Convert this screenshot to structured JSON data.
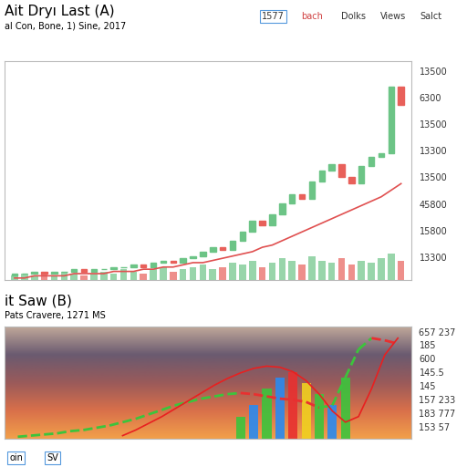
{
  "header": {
    "toolbar": [
      "1577",
      "bach",
      "Dolks",
      "Views",
      "Salct"
    ]
  },
  "footer": {
    "texts": [
      "oin",
      "SV"
    ]
  },
  "chart_data": [
    {
      "type": "candlestick",
      "title": "Ait Dryı Last (A)",
      "subtitle": "al Con, Bone, 1) Sine, 2017",
      "xlim": [
        -1,
        40
      ],
      "ylim": [
        0,
        100
      ],
      "tick_labels": false,
      "annotations": [
        "13500",
        "6300",
        "13500",
        "13300",
        "13500",
        "45800",
        "15800",
        "13300"
      ],
      "series": [
        {
          "type": "candlestick",
          "colors": [
            "#6cc486",
            "#e8605a"
          ],
          "open": [
            2,
            3,
            3,
            4,
            3,
            4,
            4,
            5,
            4,
            5,
            5,
            6,
            6,
            7,
            6,
            8,
            9,
            8,
            10,
            11,
            13,
            15,
            14,
            18,
            22,
            27,
            25,
            30,
            35,
            39,
            37,
            45,
            50,
            53,
            47,
            44,
            52,
            56,
            58,
            88
          ],
          "close": [
            3,
            3,
            4,
            3,
            4,
            4,
            5,
            4,
            5,
            5,
            6,
            6,
            7,
            6,
            8,
            9,
            8,
            10,
            11,
            13,
            15,
            14,
            18,
            22,
            27,
            25,
            30,
            35,
            39,
            37,
            45,
            50,
            53,
            47,
            44,
            52,
            56,
            58,
            88,
            80
          ]
        },
        {
          "type": "line",
          "color": "#e05050",
          "values": [
            1,
            1,
            2,
            2,
            2,
            2,
            3,
            3,
            3,
            3,
            4,
            4,
            4,
            5,
            5,
            6,
            6,
            7,
            8,
            8,
            9,
            10,
            11,
            12,
            13,
            15,
            16,
            18,
            20,
            22,
            24,
            26,
            28,
            30,
            32,
            34,
            36,
            38,
            41,
            44
          ]
        },
        {
          "type": "bar",
          "values": [
            2,
            3,
            2,
            3,
            2,
            4,
            3,
            2,
            3,
            4,
            3,
            5,
            4,
            3,
            5,
            6,
            4,
            5,
            6,
            7,
            5,
            6,
            8,
            7,
            9,
            6,
            8,
            10,
            9,
            7,
            11,
            9,
            8,
            10,
            7,
            9,
            8,
            10,
            12,
            9
          ]
        }
      ]
    },
    {
      "type": "line",
      "title": "it Saw (B)",
      "subtitle": "Pats Cravere, 1271 MS",
      "xlim": [
        -1,
        30
      ],
      "ylim": [
        0,
        100
      ],
      "tick_labels": false,
      "annotations": [
        "657 237",
        "185",
        "600",
        "145.5",
        "145",
        "157 233",
        "183 777",
        "153 57"
      ],
      "series": [
        {
          "type": "line",
          "colors": [
            "#3cc43c",
            "#e83030"
          ],
          "line_style": "dashed",
          "x": [
            0,
            1,
            2,
            3,
            4,
            5,
            6,
            7,
            8,
            9,
            10,
            11,
            12,
            13,
            14,
            15,
            16,
            17,
            18,
            19,
            20,
            21,
            22,
            23,
            24,
            25,
            26,
            27,
            28,
            29
          ],
          "values": [
            2,
            3,
            4,
            5,
            7,
            8,
            10,
            12,
            15,
            18,
            22,
            26,
            30,
            33,
            36,
            38,
            40,
            41,
            40,
            38,
            36,
            35,
            33,
            28,
            30,
            55,
            80,
            90,
            88,
            85
          ]
        },
        {
          "type": "bar",
          "x": [
            17,
            18,
            19,
            20,
            21,
            22,
            23,
            24,
            25
          ],
          "values": [
            20,
            30,
            45,
            55,
            60,
            50,
            40,
            30,
            55
          ],
          "colors": [
            "#3cc43c",
            "#2a8af0",
            "#3cc43c",
            "#2a8af0",
            "#e83030",
            "#f0d020",
            "#3cc43c",
            "#2a8af0",
            "#3cc43c"
          ]
        },
        {
          "type": "line",
          "color": "#e82020",
          "line_style": "solid",
          "x": [
            0,
            1,
            2,
            3,
            4,
            5,
            6,
            7,
            8,
            9,
            10,
            11,
            12,
            13,
            14,
            15,
            16,
            17,
            18,
            19,
            20,
            21,
            22,
            23,
            24,
            25,
            26,
            27,
            28,
            29
          ],
          "values": [
            null,
            null,
            null,
            null,
            null,
            null,
            null,
            null,
            3,
            8,
            14,
            20,
            27,
            34,
            41,
            48,
            54,
            59,
            63,
            65,
            64,
            60,
            52,
            40,
            25,
            15,
            20,
            45,
            75,
            90
          ]
        }
      ]
    }
  ]
}
